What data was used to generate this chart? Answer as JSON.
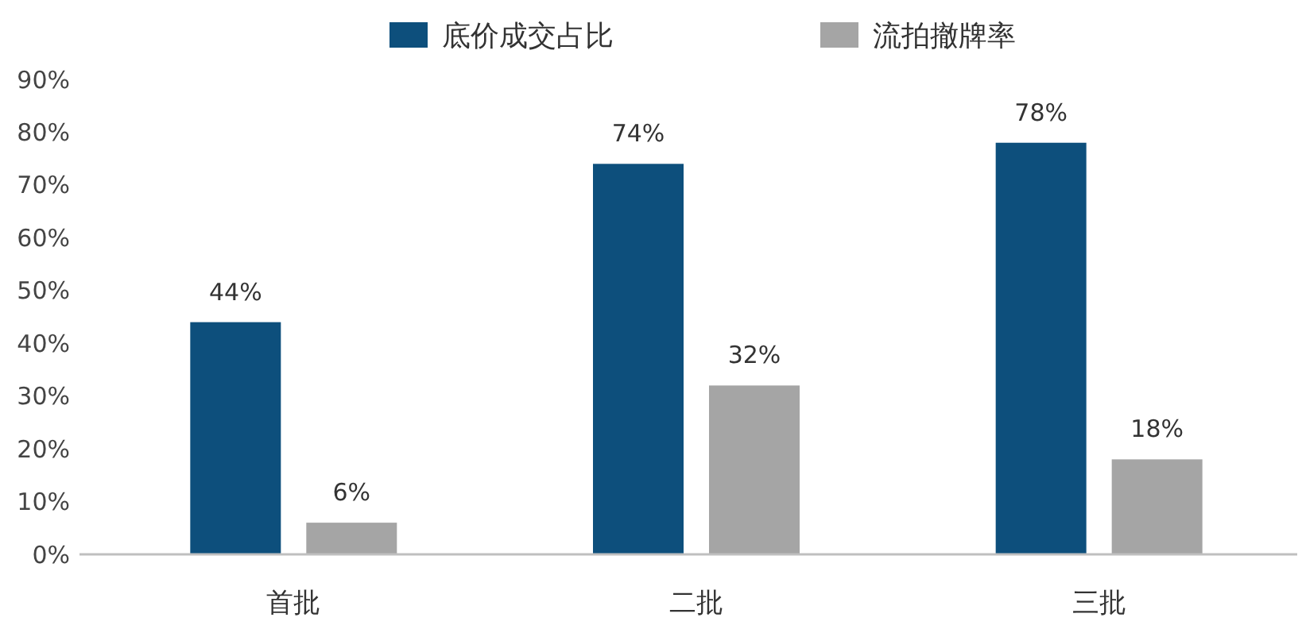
{
  "chart_data": {
    "type": "bar",
    "categories": [
      "首批",
      "二批",
      "三批"
    ],
    "series": [
      {
        "name": "底价成交占比",
        "color": "#0d4f7c",
        "values": [
          44,
          74,
          78
        ],
        "value_labels": [
          "44%",
          "74%",
          "78%"
        ]
      },
      {
        "name": "流拍撤牌率",
        "color": "#a5a5a5",
        "values": [
          6,
          32,
          18
        ],
        "value_labels": [
          "6%",
          "32%",
          "18%"
        ]
      }
    ],
    "ylim": [
      0,
      90
    ],
    "yticks": [
      {
        "value": 0,
        "label": "0%"
      },
      {
        "value": 10,
        "label": "10%"
      },
      {
        "value": 20,
        "label": "20%"
      },
      {
        "value": 30,
        "label": "30%"
      },
      {
        "value": 40,
        "label": "40%"
      },
      {
        "value": 50,
        "label": "50%"
      },
      {
        "value": 60,
        "label": "60%"
      },
      {
        "value": 70,
        "label": "70%"
      },
      {
        "value": 80,
        "label": "80%"
      },
      {
        "value": 90,
        "label": "90%"
      }
    ],
    "legend": "top",
    "grid": false
  }
}
